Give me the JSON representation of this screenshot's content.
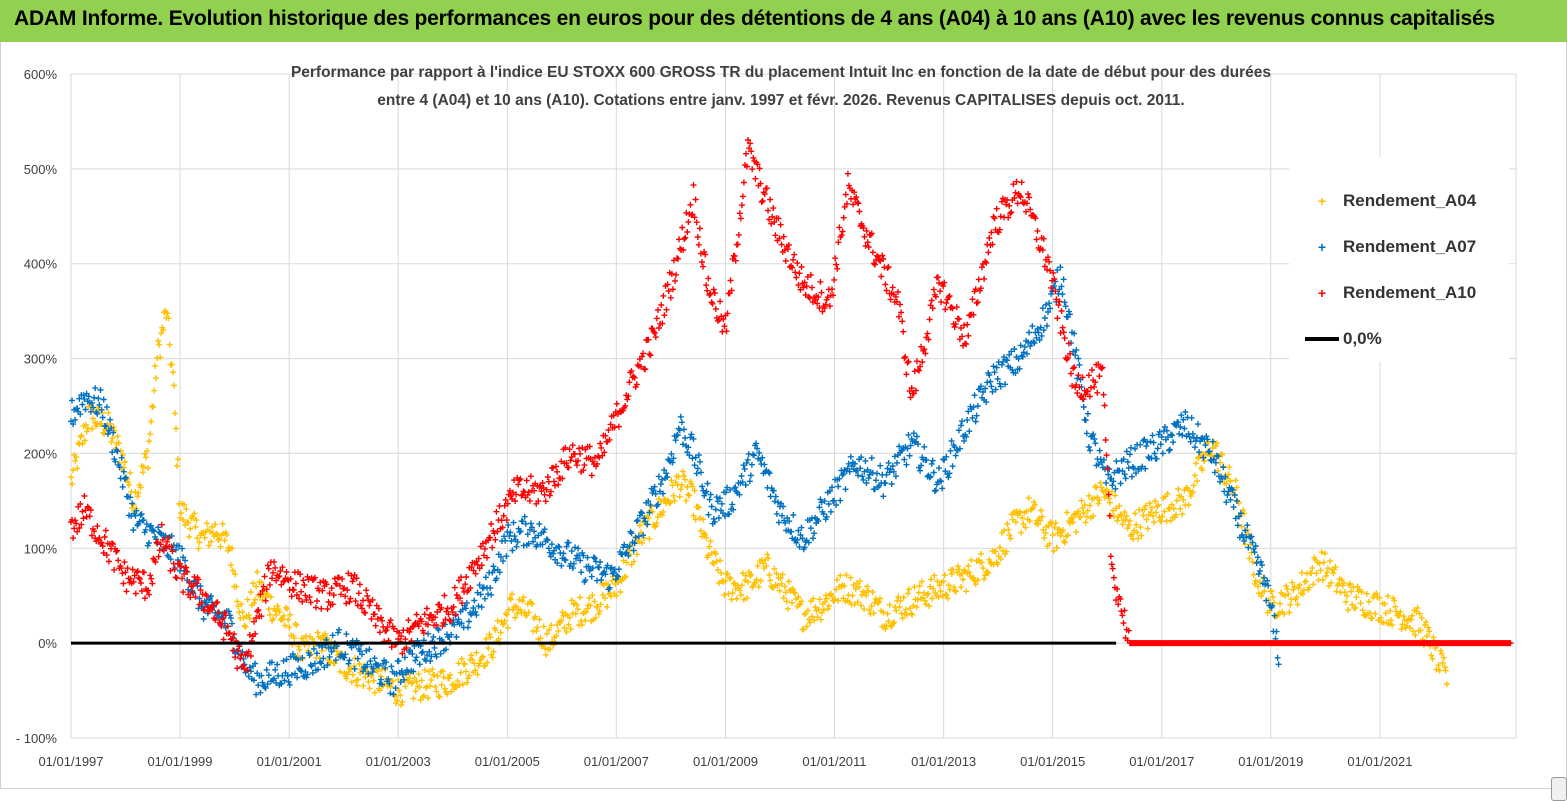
{
  "header": {
    "title": "ADAM Informe. Evolution historique des performances en euros pour des détentions de 4 ans (A04) à 10 ans (A10) avec les revenus connus capitalisés"
  },
  "colors": {
    "header_bg": "#92d050",
    "a04": "#ffc000",
    "a07": "#0070c0",
    "a10": "#ff0000",
    "zero": "#000000",
    "grid": "#d9d9d9"
  },
  "chart_data": {
    "type": "scatter",
    "title_line1": "Performance par rapport à l'indice EU STOXX 600 GROSS TR  du placement Intuit Inc en fonction de la date de début pour des durées",
    "title_line2": "entre 4 (A04) et 10 ans (A10). Cotations entre janv. 1997 et févr. 2026. Revenus CAPITALISES depuis oct. 2011.",
    "x_type": "date",
    "xlim": [
      "1997-01-01",
      "2023-07-01"
    ],
    "ylim": [
      -100,
      600
    ],
    "y_ticks": [
      "600%",
      "500%",
      "400%",
      "300%",
      "200%",
      "100%",
      "0%",
      "- 100%"
    ],
    "x_ticks": [
      "01/01/1997",
      "01/01/1999",
      "01/01/2001",
      "01/01/2003",
      "01/01/2005",
      "01/01/2007",
      "01/01/2009",
      "01/01/2011",
      "01/01/2013",
      "01/01/2015",
      "01/01/2017",
      "01/01/2019",
      "01/01/2021"
    ],
    "legend_position": "top-right",
    "grid": true,
    "series": [
      {
        "name": "Rendement_A04",
        "color": "#ffc000",
        "points": [
          [
            "1997-01-01",
            170
          ],
          [
            "1997-05-01",
            240
          ],
          [
            "1997-09-01",
            230
          ],
          [
            "1997-12-01",
            200
          ],
          [
            "1998-03-01",
            150
          ],
          [
            "1998-06-01",
            200
          ],
          [
            "1998-08-01",
            300
          ],
          [
            "1998-10-01",
            350
          ],
          [
            "1998-11-15",
            280
          ],
          [
            "1999-01-01",
            140
          ],
          [
            "1999-06-01",
            110
          ],
          [
            "1999-09-01",
            120
          ],
          [
            "1999-12-01",
            100
          ],
          [
            "2000-03-01",
            20
          ],
          [
            "2000-06-01",
            60
          ],
          [
            "2000-09-01",
            40
          ],
          [
            "2001-01-01",
            20
          ],
          [
            "2001-04-01",
            -10
          ],
          [
            "2001-08-01",
            0
          ],
          [
            "2001-12-01",
            -20
          ],
          [
            "2002-04-01",
            -30
          ],
          [
            "2002-09-01",
            -40
          ],
          [
            "2003-01-01",
            -50
          ],
          [
            "2003-06-01",
            -45
          ],
          [
            "2003-12-01",
            -40
          ],
          [
            "2004-06-01",
            -20
          ],
          [
            "2004-10-01",
            0
          ],
          [
            "2005-02-01",
            40
          ],
          [
            "2005-06-01",
            30
          ],
          [
            "2005-10-01",
            0
          ],
          [
            "2006-03-01",
            30
          ],
          [
            "2006-08-01",
            40
          ],
          [
            "2007-01-01",
            60
          ],
          [
            "2007-06-01",
            110
          ],
          [
            "2007-12-01",
            150
          ],
          [
            "2008-03-01",
            170
          ],
          [
            "2008-06-01",
            150
          ],
          [
            "2008-09-01",
            100
          ],
          [
            "2009-01-01",
            60
          ],
          [
            "2009-06-01",
            60
          ],
          [
            "2009-10-01",
            80
          ],
          [
            "2010-03-01",
            50
          ],
          [
            "2010-06-01",
            30
          ],
          [
            "2010-10-01",
            40
          ],
          [
            "2011-03-01",
            60
          ],
          [
            "2011-08-01",
            50
          ],
          [
            "2011-12-01",
            30
          ],
          [
            "2012-04-01",
            40
          ],
          [
            "2012-08-01",
            50
          ],
          [
            "2013-01-01",
            60
          ],
          [
            "2013-06-01",
            70
          ],
          [
            "2013-12-01",
            90
          ],
          [
            "2014-04-01",
            120
          ],
          [
            "2014-08-01",
            140
          ],
          [
            "2015-01-01",
            110
          ],
          [
            "2015-06-01",
            130
          ],
          [
            "2015-12-01",
            160
          ],
          [
            "2016-06-01",
            120
          ],
          [
            "2016-12-01",
            140
          ],
          [
            "2017-06-01",
            150
          ],
          [
            "2017-12-01",
            210
          ],
          [
            "2018-06-01",
            150
          ],
          [
            "2018-09-01",
            80
          ],
          [
            "2019-01-01",
            40
          ],
          [
            "2019-06-01",
            50
          ],
          [
            "2019-12-01",
            85
          ],
          [
            "2020-06-01",
            50
          ],
          [
            "2020-12-01",
            40
          ],
          [
            "2021-06-01",
            30
          ],
          [
            "2021-10-01",
            20
          ],
          [
            "2022-01-01",
            -10
          ],
          [
            "2022-04-01",
            -40
          ]
        ]
      },
      {
        "name": "Rendement_A07",
        "color": "#0070c0",
        "points": [
          [
            "1997-01-01",
            240
          ],
          [
            "1997-04-01",
            260
          ],
          [
            "1997-08-01",
            250
          ],
          [
            "1997-11-01",
            200
          ],
          [
            "1998-03-01",
            130
          ],
          [
            "1998-08-01",
            110
          ],
          [
            "1999-01-01",
            90
          ],
          [
            "1999-06-01",
            40
          ],
          [
            "1999-12-01",
            20
          ],
          [
            "2000-03-01",
            -20
          ],
          [
            "2000-06-01",
            -40
          ],
          [
            "2000-12-01",
            -30
          ],
          [
            "2001-06-01",
            -20
          ],
          [
            "2001-12-01",
            0
          ],
          [
            "2002-06-01",
            -20
          ],
          [
            "2002-12-01",
            -40
          ],
          [
            "2003-03-01",
            -20
          ],
          [
            "2003-09-01",
            0
          ],
          [
            "2004-03-01",
            20
          ],
          [
            "2004-09-01",
            60
          ],
          [
            "2005-01-01",
            110
          ],
          [
            "2005-06-01",
            120
          ],
          [
            "2005-12-01",
            100
          ],
          [
            "2006-06-01",
            80
          ],
          [
            "2006-12-01",
            70
          ],
          [
            "2007-06-01",
            120
          ],
          [
            "2007-12-01",
            180
          ],
          [
            "2008-03-01",
            230
          ],
          [
            "2008-06-01",
            200
          ],
          [
            "2008-10-01",
            140
          ],
          [
            "2009-02-01",
            150
          ],
          [
            "2009-08-01",
            200
          ],
          [
            "2010-01-01",
            140
          ],
          [
            "2010-06-01",
            110
          ],
          [
            "2010-12-01",
            150
          ],
          [
            "2011-06-01",
            190
          ],
          [
            "2011-12-01",
            170
          ],
          [
            "2012-06-01",
            210
          ],
          [
            "2012-12-01",
            170
          ],
          [
            "2013-06-01",
            230
          ],
          [
            "2013-12-01",
            280
          ],
          [
            "2014-06-01",
            300
          ],
          [
            "2014-12-01",
            350
          ],
          [
            "2015-03-01",
            390
          ],
          [
            "2015-09-01",
            220
          ],
          [
            "2016-01-01",
            170
          ],
          [
            "2016-06-01",
            190
          ],
          [
            "2017-01-01",
            210
          ],
          [
            "2017-06-01",
            230
          ],
          [
            "2017-12-01",
            200
          ],
          [
            "2018-06-01",
            130
          ],
          [
            "2018-12-01",
            60
          ],
          [
            "2019-03-01",
            -15
          ]
        ]
      },
      {
        "name": "Rendement_A10",
        "color": "#ff0000",
        "points": [
          [
            "1997-01-01",
            120
          ],
          [
            "1997-04-01",
            140
          ],
          [
            "1997-08-01",
            110
          ],
          [
            "1998-01-01",
            70
          ],
          [
            "1998-06-01",
            60
          ],
          [
            "1998-09-01",
            110
          ],
          [
            "1999-01-01",
            70
          ],
          [
            "1999-06-01",
            50
          ],
          [
            "1999-12-01",
            10
          ],
          [
            "2000-03-01",
            -30
          ],
          [
            "2000-09-01",
            80
          ],
          [
            "2001-03-01",
            60
          ],
          [
            "2001-09-01",
            50
          ],
          [
            "2002-03-01",
            60
          ],
          [
            "2002-09-01",
            20
          ],
          [
            "2003-01-01",
            0
          ],
          [
            "2003-06-01",
            20
          ],
          [
            "2004-01-01",
            40
          ],
          [
            "2004-09-01",
            110
          ],
          [
            "2005-03-01",
            160
          ],
          [
            "2005-09-01",
            160
          ],
          [
            "2006-03-01",
            200
          ],
          [
            "2006-09-01",
            190
          ],
          [
            "2007-03-01",
            260
          ],
          [
            "2007-09-01",
            320
          ],
          [
            "2008-01-01",
            380
          ],
          [
            "2008-06-01",
            470
          ],
          [
            "2008-09-01",
            380
          ],
          [
            "2009-01-01",
            330
          ],
          [
            "2009-06-01",
            520
          ],
          [
            "2009-12-01",
            440
          ],
          [
            "2010-06-01",
            380
          ],
          [
            "2010-12-01",
            360
          ],
          [
            "2011-04-01",
            480
          ],
          [
            "2011-09-01",
            420
          ],
          [
            "2012-03-01",
            360
          ],
          [
            "2012-06-01",
            260
          ],
          [
            "2012-12-01",
            380
          ],
          [
            "2013-06-01",
            320
          ],
          [
            "2013-12-01",
            440
          ],
          [
            "2014-06-01",
            480
          ],
          [
            "2014-12-01",
            400
          ],
          [
            "2015-06-01",
            270
          ],
          [
            "2015-12-01",
            280
          ],
          [
            "2016-02-01",
            80
          ],
          [
            "2016-06-01",
            0
          ],
          [
            "2023-06-01",
            0
          ]
        ]
      },
      {
        "name": "0,0%",
        "color": "#000000",
        "points": [
          [
            "1997-01-01",
            0
          ],
          [
            "2016-03-01",
            0
          ]
        ]
      }
    ]
  }
}
